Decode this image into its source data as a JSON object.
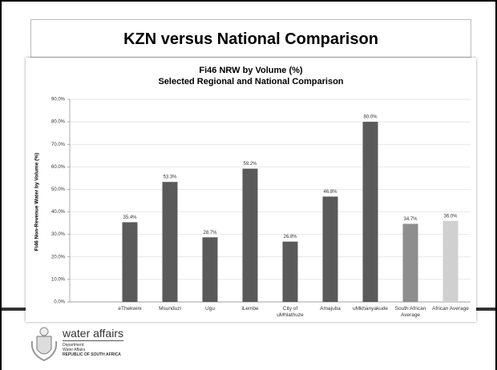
{
  "slide": {
    "title": "KZN versus National Comparison",
    "logo": {
      "name": "water affairs",
      "lines": [
        "Department:",
        "Water Affairs",
        "REPUBLIC OF SOUTH AFRICA"
      ]
    }
  },
  "chart_data": {
    "type": "bar",
    "title": "Fi46 NRW by Volume (%)",
    "subtitle": "Selected Regional and National Comparison",
    "y_label": "Fi46 Non-Revenue Water by Volume (%)",
    "categories": [
      null,
      "eThekwini",
      "Msunduzi",
      "Ugu",
      "iLembe",
      "City of uMhlathuze",
      "Amajuba",
      "uMkhanyakude",
      "South African Average",
      "African Average"
    ],
    "values": [
      null,
      35.4,
      53.3,
      28.7,
      59.2,
      26.8,
      46.8,
      80.0,
      34.7,
      36.0
    ],
    "value_labels": [
      null,
      "35.4%",
      "53.3%",
      "28.7%",
      "59.2%",
      "26.8%",
      "46.8%",
      "80.0%",
      "34.7%",
      "36.0%"
    ],
    "colors": [
      null,
      "#5a5a5a",
      "#5a5a5a",
      "#5a5a5a",
      "#5a5a5a",
      "#5a5a5a",
      "#5a5a5a",
      "#5a5a5a",
      "#8e8e8e",
      "#d0d0d0"
    ],
    "ylim": [
      0,
      90
    ],
    "yticks": [
      {
        "value": 0,
        "label": "0.0%"
      },
      {
        "value": 10,
        "label": "10.0%"
      },
      {
        "value": 20,
        "label": "20.0%"
      },
      {
        "value": 30,
        "label": "30.0%"
      },
      {
        "value": 40,
        "label": "40.0%"
      },
      {
        "value": 50,
        "label": "50.0%"
      },
      {
        "value": 60,
        "label": "60.0%"
      },
      {
        "value": 70,
        "label": "70.0%"
      },
      {
        "value": 80,
        "label": "80.0%"
      },
      {
        "value": 90,
        "label": "90.0%"
      }
    ],
    "grid": true
  }
}
